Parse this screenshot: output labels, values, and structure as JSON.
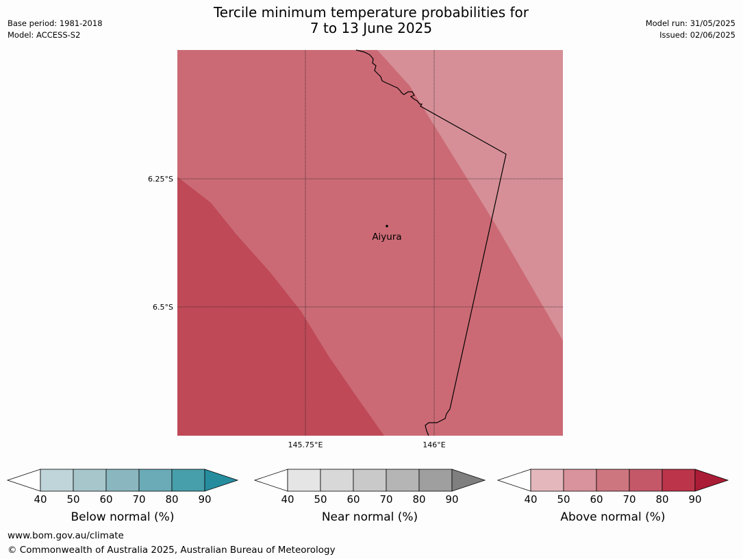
{
  "header": {
    "title_line1": "Tercile minimum temperature probabilities for",
    "title_line2": "7 to 13 June 2025",
    "base_period": "Base period: 1981-2018",
    "model": "Model: ACCESS-S2",
    "model_run": "Model run: 31/05/2025",
    "issued": "Issued: 02/06/2025"
  },
  "map": {
    "lat_labels": [
      "6.25°S",
      "6.5°S"
    ],
    "lon_labels": [
      "145.75°E",
      "146°E"
    ],
    "place": {
      "name": "Aiyura"
    },
    "regions": [
      {
        "name": "above-normal-50-60",
        "color": "#d68f97"
      },
      {
        "name": "above-normal-60-70",
        "color": "#cb6a75"
      },
      {
        "name": "above-normal-70-80",
        "color": "#bf4957"
      }
    ]
  },
  "colorbars": [
    {
      "label": "Below normal (%)",
      "colors": [
        "#bfd5da",
        "#a6c6cb",
        "#8ab6bf",
        "#6babb7",
        "#479fab",
        "#268d9f"
      ],
      "ticks": [
        "40",
        "50",
        "60",
        "70",
        "80",
        "90"
      ]
    },
    {
      "label": "Near normal (%)",
      "colors": [
        "#e5e5e5",
        "#d8d8d8",
        "#c9c9c9",
        "#b5b5b5",
        "#9f9f9f",
        "#7f7f7f"
      ],
      "ticks": [
        "40",
        "50",
        "60",
        "70",
        "80",
        "90"
      ]
    },
    {
      "label": "Above normal (%)",
      "colors": [
        "#e3b7bc",
        "#d8939c",
        "#ce7680",
        "#c45869",
        "#bb3449",
        "#ab1c36"
      ],
      "ticks": [
        "40",
        "50",
        "60",
        "70",
        "80",
        "90"
      ]
    }
  ],
  "footer": {
    "url": "www.bom.gov.au/climate",
    "copyright": "© Commonwealth of Australia 2025, Australian Bureau of Meteorology"
  }
}
